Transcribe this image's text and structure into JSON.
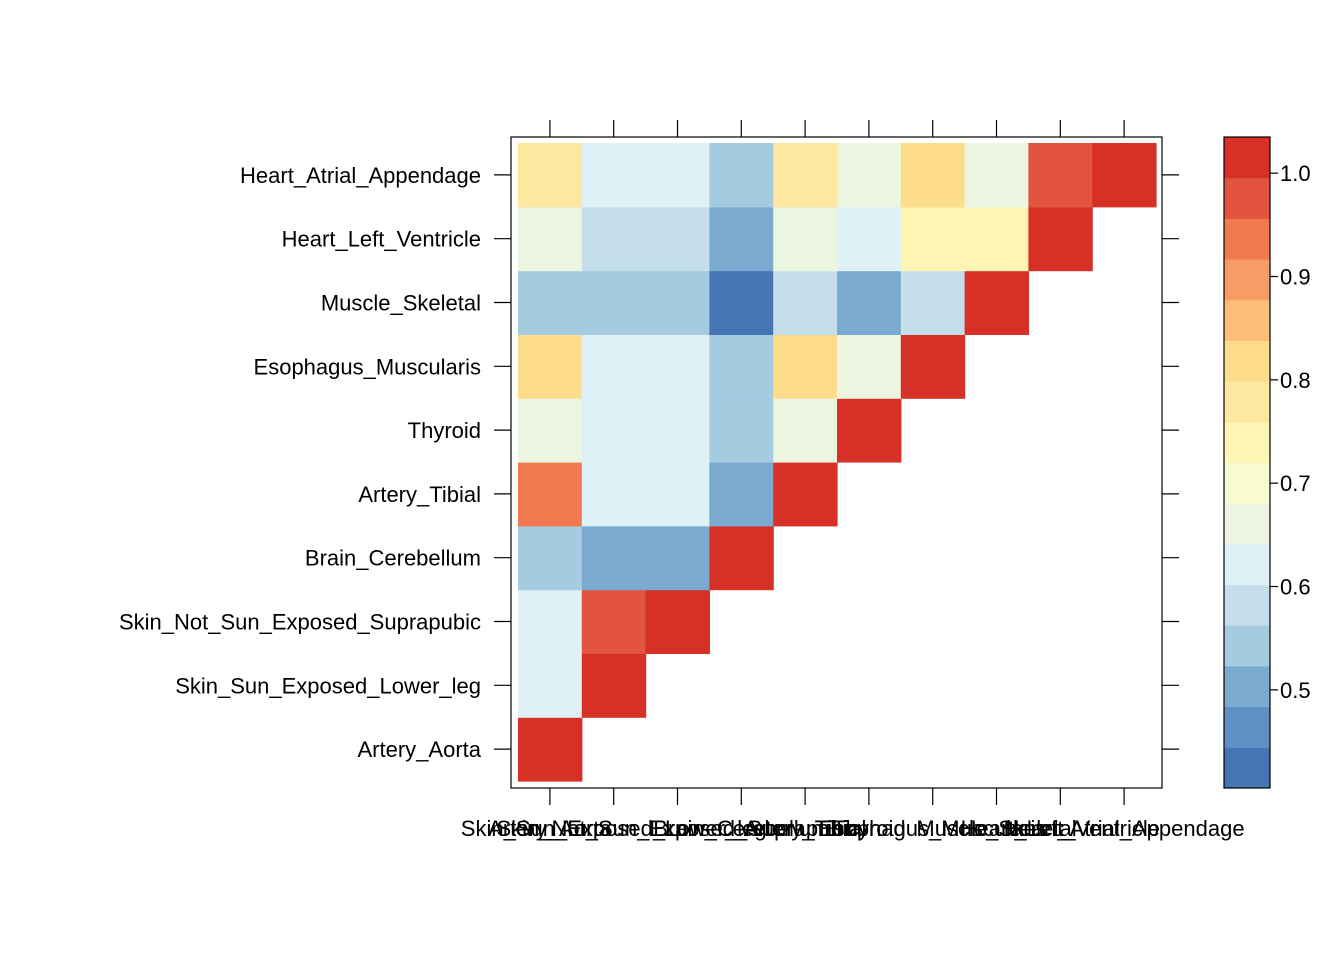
{
  "chart_data": {
    "type": "heatmap",
    "title": "",
    "xlabel": "",
    "ylabel": "",
    "row_labels": [
      "Artery_Aorta",
      "Skin_Sun_Exposed_Lower_leg",
      "Skin_Not_Sun_Exposed_Suprapubic",
      "Brain_Cerebellum",
      "Artery_Tibial",
      "Thyroid",
      "Esophagus_Muscularis",
      "Muscle_Skeletal",
      "Heart_Left_Ventricle",
      "Heart_Atrial_Appendage"
    ],
    "col_labels": [
      "Artery_Aorta",
      "Skin_Sun_Exposed_Lower_leg",
      "Skin_Not_Sun_Exposed_Suprapubic",
      "Brain_Cerebellum",
      "Artery_Tibial",
      "Thyroid",
      "Esophagus_Muscularis",
      "Muscle_Skeletal",
      "Heart_Left_Ventricle",
      "Heart_Atrial_Appendage"
    ],
    "values": [
      [
        1.0,
        null,
        null,
        null,
        null,
        null,
        null,
        null,
        null,
        null
      ],
      [
        0.62,
        1.0,
        null,
        null,
        null,
        null,
        null,
        null,
        null,
        null
      ],
      [
        0.62,
        0.98,
        1.0,
        null,
        null,
        null,
        null,
        null,
        null,
        null
      ],
      [
        0.55,
        0.52,
        0.52,
        1.0,
        null,
        null,
        null,
        null,
        null,
        null
      ],
      [
        0.95,
        0.62,
        0.62,
        0.52,
        1.0,
        null,
        null,
        null,
        null,
        null
      ],
      [
        0.67,
        0.62,
        0.62,
        0.55,
        0.67,
        1.0,
        null,
        null,
        null,
        null
      ],
      [
        0.82,
        0.62,
        0.62,
        0.55,
        0.82,
        0.67,
        1.0,
        null,
        null,
        null
      ],
      [
        0.55,
        0.55,
        0.55,
        0.42,
        0.57,
        0.52,
        0.57,
        1.0,
        null,
        null
      ],
      [
        0.67,
        0.57,
        0.57,
        0.52,
        0.67,
        0.62,
        0.72,
        0.72,
        1.0,
        null
      ],
      [
        0.77,
        0.62,
        0.62,
        0.55,
        0.77,
        0.67,
        0.8,
        0.67,
        0.98,
        1.0
      ]
    ],
    "colorbar": {
      "ticks": [
        "0.5",
        "0.6",
        "0.7",
        "0.8",
        "0.9",
        "1.0"
      ],
      "tick_values": [
        0.5,
        0.6,
        0.7,
        0.8,
        0.9,
        1.0
      ],
      "range": [
        0.405,
        1.035
      ],
      "colors": [
        "#4575B4",
        "#5F8FC3",
        "#7BAAD1",
        "#A5CBE1",
        "#C4DFEB",
        "#DEF1F6",
        "#EBF5E0",
        "#F7FBCF",
        "#FEF4B3",
        "#FEE79F",
        "#FDDC8C",
        "#FCBE78",
        "#F99B64",
        "#F17A51",
        "#E3543E",
        "#D73027"
      ]
    }
  }
}
